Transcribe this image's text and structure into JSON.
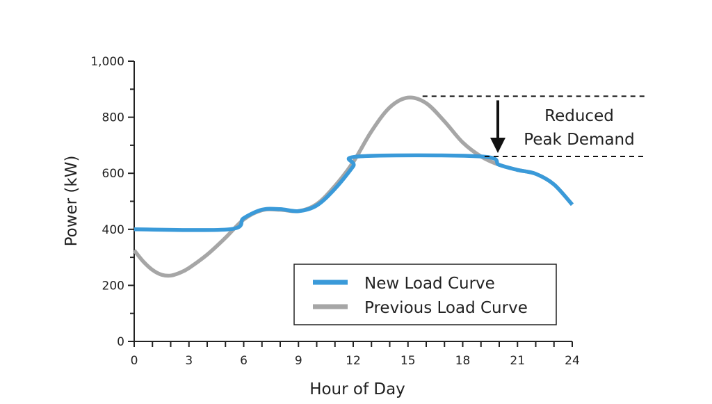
{
  "chart_data": {
    "type": "line",
    "title": "",
    "xlabel": "Hour of Day",
    "ylabel": "Power (kW)",
    "xlim": [
      0,
      24
    ],
    "ylim": [
      0,
      1000
    ],
    "x_ticks": [
      0,
      3,
      6,
      9,
      12,
      15,
      18,
      21,
      24
    ],
    "x_minor_step": 1,
    "y_ticks": [
      0,
      200,
      400,
      600,
      800,
      1000
    ],
    "y_tick_labels": [
      "0",
      "200",
      "400",
      "600",
      "800",
      "1,000"
    ],
    "y_minor_step": 100,
    "grid": false,
    "legend_position": "bottom-right",
    "series": [
      {
        "name": "New Load Curve",
        "color": "#3a9ad9",
        "points": [
          [
            0,
            400
          ],
          [
            5.2,
            400
          ],
          [
            6,
            440
          ],
          [
            7,
            470
          ],
          [
            8,
            472
          ],
          [
            9,
            465
          ],
          [
            10,
            485
          ],
          [
            11,
            545
          ],
          [
            12,
            625
          ],
          [
            12.3,
            660
          ],
          [
            19,
            660
          ],
          [
            20,
            630
          ],
          [
            21,
            612
          ],
          [
            22,
            598
          ],
          [
            23,
            560
          ],
          [
            24,
            488
          ]
        ]
      },
      {
        "name": "Previous Load Curve",
        "color": "#a6a6a6",
        "points": [
          [
            0,
            325
          ],
          [
            0.5,
            285
          ],
          [
            1,
            255
          ],
          [
            1.5,
            238
          ],
          [
            2,
            235
          ],
          [
            2.5,
            245
          ],
          [
            3,
            262
          ],
          [
            4,
            310
          ],
          [
            5,
            370
          ],
          [
            6,
            435
          ],
          [
            7,
            468
          ],
          [
            8,
            470
          ],
          [
            9,
            465
          ],
          [
            10,
            490
          ],
          [
            11,
            555
          ],
          [
            12,
            640
          ],
          [
            13,
            750
          ],
          [
            14,
            835
          ],
          [
            15,
            870
          ],
          [
            16,
            850
          ],
          [
            17,
            785
          ],
          [
            18,
            710
          ],
          [
            19,
            660
          ],
          [
            20,
            630
          ],
          [
            21,
            612
          ],
          [
            22,
            598
          ],
          [
            23,
            560
          ],
          [
            24,
            488
          ]
        ]
      }
    ],
    "annotation": {
      "text_lines": [
        "Reduced",
        "Peak Demand"
      ],
      "upper_level": 875,
      "lower_level": 660,
      "x_start": 15.8,
      "x_end": 28.0,
      "arrow_x": 20
    }
  }
}
